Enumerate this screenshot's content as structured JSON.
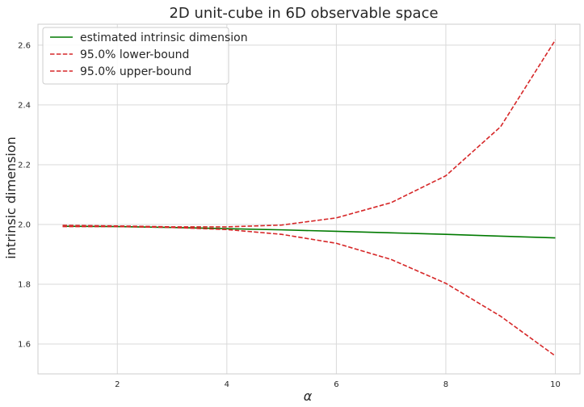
{
  "chart_data": {
    "type": "line",
    "title": "2D unit-cube in 6D observable space",
    "xlabel": "α",
    "ylabel": "intrinsic dimension",
    "xlim": [
      0.55,
      10.45
    ],
    "ylim": [
      1.5,
      2.67
    ],
    "xticks": [
      2,
      4,
      6,
      8,
      10
    ],
    "yticks": [
      1.6,
      1.8,
      2.0,
      2.2,
      2.4,
      2.6
    ],
    "grid": true,
    "legend_position": "top-left",
    "x": [
      1,
      2,
      3,
      4,
      5,
      6,
      7,
      8,
      9,
      10
    ],
    "series": [
      {
        "name": "estimated intrinsic dimension",
        "color": "#007a00",
        "style": "solid",
        "values": [
          1.994,
          1.993,
          1.99,
          1.986,
          1.982,
          1.977,
          1.972,
          1.967,
          1.961,
          1.955
        ]
      },
      {
        "name": "95.0% lower-bound",
        "color": "#d62728",
        "style": "dashed",
        "values": [
          1.993,
          1.993,
          1.99,
          1.983,
          1.967,
          1.937,
          1.883,
          1.803,
          1.693,
          1.56
        ]
      },
      {
        "name": "95.0% upper-bound",
        "color": "#d62728",
        "style": "dashed",
        "values": [
          1.997,
          1.995,
          1.992,
          1.992,
          1.998,
          2.022,
          2.073,
          2.163,
          2.327,
          2.617
        ]
      }
    ]
  }
}
